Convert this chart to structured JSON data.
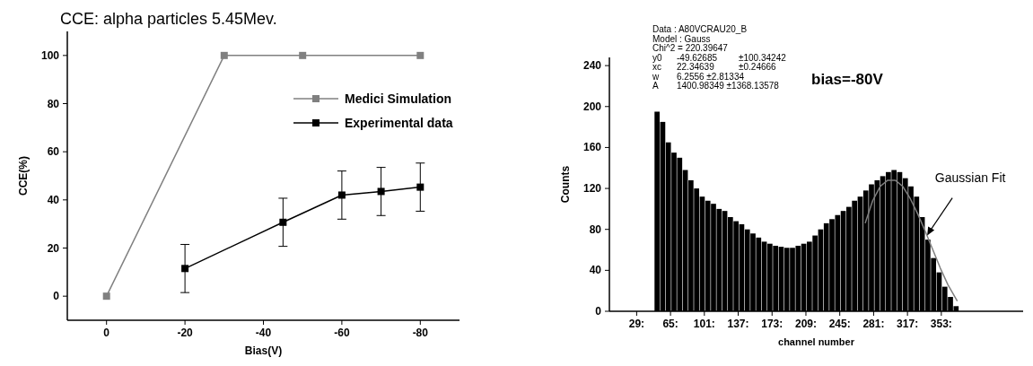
{
  "chart_data": [
    {
      "type": "line",
      "title": "CCE: alpha particles 5.45Mev.",
      "xlabel": "Bias(V)",
      "ylabel": "CCE(%)",
      "xlim": [
        10,
        -90
      ],
      "xticks": [
        0,
        -20,
        -40,
        -60,
        -80
      ],
      "ylim": [
        -10,
        110
      ],
      "yticks": [
        0,
        20,
        40,
        60,
        80,
        100
      ],
      "marker": "square",
      "legend": "top right",
      "series": [
        {
          "name": "Medici Simulation",
          "color": "#808080",
          "x": [
            0,
            -30,
            -50,
            -80
          ],
          "values": [
            0,
            100,
            100,
            100
          ]
        },
        {
          "name": "Experimental data",
          "color": "#000000",
          "x": [
            -20,
            -45,
            -60,
            -70,
            -80
          ],
          "values": [
            11.5,
            30.7,
            42,
            43.5,
            45.3
          ],
          "errors": [
            10,
            10,
            10,
            10,
            10
          ]
        }
      ]
    },
    {
      "type": "histogram",
      "title": "bias=-80V",
      "xlabel": "channel number",
      "ylabel": "Counts",
      "xlim": [
        0,
        440
      ],
      "ylim": [
        0,
        248
      ],
      "yticks": [
        0,
        40,
        80,
        120,
        160,
        200,
        240
      ],
      "xticks": [
        {
          "value": 29,
          "label": "29:"
        },
        {
          "value": 65,
          "label": "65:"
        },
        {
          "value": 101,
          "label": "101:"
        },
        {
          "value": 137,
          "label": "137:"
        },
        {
          "value": 173,
          "label": "173:"
        },
        {
          "value": 209,
          "label": "209:"
        },
        {
          "value": 245,
          "label": "245:"
        },
        {
          "value": 281,
          "label": "281:"
        },
        {
          "value": 317,
          "label": "317:"
        },
        {
          "value": 353,
          "label": "353:"
        }
      ],
      "color": "#000000",
      "bins": [
        48,
        54,
        60,
        66,
        72,
        78,
        84,
        90,
        96,
        102,
        108,
        114,
        120,
        126,
        132,
        138,
        144,
        150,
        156,
        162,
        168,
        174,
        180,
        186,
        192,
        198,
        204,
        210,
        216,
        222,
        228,
        234,
        240,
        246,
        252,
        258,
        264,
        270,
        276,
        282,
        288,
        294,
        300,
        306,
        312,
        318,
        324,
        330,
        336,
        342,
        348,
        354,
        360,
        366,
        372
      ],
      "values": [
        195,
        185,
        165,
        155,
        150,
        138,
        128,
        120,
        112,
        108,
        105,
        100,
        98,
        92,
        88,
        85,
        80,
        76,
        72,
        68,
        66,
        64,
        63,
        62,
        62,
        64,
        66,
        68,
        74,
        80,
        86,
        90,
        94,
        98,
        102,
        108,
        112,
        118,
        124,
        128,
        132,
        136,
        138,
        136,
        130,
        122,
        112,
        92,
        70,
        52,
        38,
        24,
        14,
        5
      ],
      "series": [
        {
          "type": "line",
          "color": "#808080",
          "x": [
            272,
            280,
            288,
            296,
            304,
            312,
            320,
            328,
            336,
            344,
            352,
            360,
            370
          ],
          "values": [
            86,
            108,
            122,
            128,
            128,
            122,
            110,
            95,
            78,
            60,
            42,
            26,
            10
          ]
        }
      ],
      "annotations": [
        "Data : A80VCRAU20_B",
        "Model : Gauss",
        "Chi^2 = 220.39647",
        "y0\t-49.62685\t±100.34242",
        "xc\t22.34639\t±0.24666",
        "w\t6.2556  ±2.81334",
        "A\t1400.98349  ±1368.13578",
        {
          "text": "Gaussian Fit",
          "x": 338,
          "y": 74
        }
      ]
    }
  ]
}
